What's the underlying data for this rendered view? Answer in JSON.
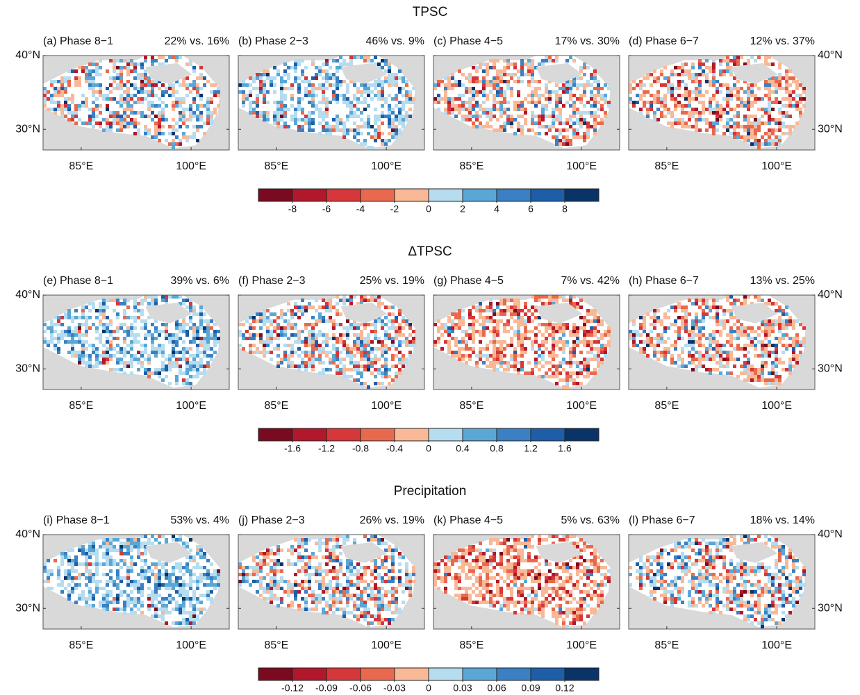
{
  "chart_data": [
    {
      "type": "map",
      "title": "TPSC",
      "panels": [
        {
          "label": "(a) Phase 8−1",
          "stat": "22% vs. 16%"
        },
        {
          "label": "(b) Phase 2−3",
          "stat": "46% vs. 9%"
        },
        {
          "label": "(c) Phase 4−5",
          "stat": "17% vs. 30%"
        },
        {
          "label": "(d) Phase 6−7",
          "stat": "12% vs. 37%"
        }
      ],
      "xlim": [
        79.8,
        105.2
      ],
      "ylim": [
        27.2,
        40
      ],
      "xticks": [
        {
          "value": 85,
          "label": "85°E"
        },
        {
          "value": 100,
          "label": "100°E"
        }
      ],
      "yticks": [
        {
          "value": 30,
          "label": "30°N"
        },
        {
          "value": 40,
          "label": "40°N"
        }
      ],
      "colorbar": {
        "clim": [
          -10,
          10
        ],
        "ticks": [
          -8,
          -6,
          -4,
          -2,
          0,
          2,
          4,
          6,
          8
        ],
        "colors": [
          "#7a0a1f",
          "#b2182b",
          "#d6373a",
          "#e8694e",
          "#f9b896",
          "#b5dcef",
          "#5aa7d6",
          "#3a80c2",
          "#1e5ea8",
          "#0a3468"
        ]
      }
    },
    {
      "type": "map",
      "title": "ΔTPSC",
      "panels": [
        {
          "label": "(e) Phase 8−1",
          "stat": "39% vs. 6%"
        },
        {
          "label": "(f) Phase 2−3",
          "stat": "25% vs. 19%"
        },
        {
          "label": "(g) Phase 4−5",
          "stat": "7% vs. 42%"
        },
        {
          "label": "(h) Phase 6−7",
          "stat": "13% vs. 25%"
        }
      ],
      "xlim": [
        79.8,
        105.2
      ],
      "ylim": [
        27.2,
        40
      ],
      "xticks": [
        {
          "value": 85,
          "label": "85°E"
        },
        {
          "value": 100,
          "label": "100°E"
        }
      ],
      "yticks": [
        {
          "value": 30,
          "label": "30°N"
        },
        {
          "value": 40,
          "label": "40°N"
        }
      ],
      "colorbar": {
        "clim": [
          -2,
          2
        ],
        "ticks": [
          -1.6,
          -1.2,
          -0.8,
          -0.4,
          0,
          0.4,
          0.8,
          1.2,
          1.6
        ],
        "colors": [
          "#7a0a1f",
          "#b2182b",
          "#d6373a",
          "#e8694e",
          "#f9b896",
          "#b5dcef",
          "#5aa7d6",
          "#3a80c2",
          "#1e5ea8",
          "#0a3468"
        ]
      }
    },
    {
      "type": "map",
      "title": "Precipitation",
      "panels": [
        {
          "label": "(i) Phase 8−1",
          "stat": "53% vs. 4%"
        },
        {
          "label": "(j) Phase 2−3",
          "stat": "26% vs. 19%"
        },
        {
          "label": "(k) Phase 4−5",
          "stat": "5% vs. 63%"
        },
        {
          "label": "(l) Phase 6−7",
          "stat": "18% vs. 14%"
        }
      ],
      "xlim": [
        79.8,
        105.2
      ],
      "ylim": [
        27.2,
        40
      ],
      "xticks": [
        {
          "value": 85,
          "label": "85°E"
        },
        {
          "value": 100,
          "label": "100°E"
        }
      ],
      "yticks": [
        {
          "value": 30,
          "label": "30°N"
        },
        {
          "value": 40,
          "label": "40°N"
        }
      ],
      "colorbar": {
        "clim": [
          -0.15,
          0.15
        ],
        "ticks": [
          -0.12,
          -0.09,
          -0.06,
          -0.03,
          0,
          0.03,
          0.06,
          0.09,
          0.12
        ],
        "colors": [
          "#7a0a1f",
          "#b2182b",
          "#d6373a",
          "#e8694e",
          "#f9b896",
          "#b5dcef",
          "#5aa7d6",
          "#3a80c2",
          "#1e5ea8",
          "#0a3468"
        ]
      }
    }
  ]
}
